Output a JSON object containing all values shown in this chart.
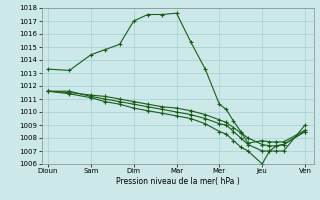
{
  "title": "",
  "xlabel": "Pression niveau de la mer( hPa )",
  "xtick_labels": [
    "Dioun",
    "Sam",
    "Dim",
    "Mar",
    "Mer",
    "Jeu",
    "Ven"
  ],
  "ytick_min": 1006,
  "ytick_max": 1018,
  "ytick_step": 1,
  "background_color": "#cce8e8",
  "grid_color": "#99cccc",
  "line_color": "#1a5c1a",
  "line_width": 0.8,
  "marker": "+",
  "marker_size": 3,
  "marker_edge_width": 0.8,
  "lines": [
    [
      1013.3,
      1013.2,
      1014.4,
      1014.8,
      1015.2,
      1017.0,
      1017.5,
      1017.5,
      1017.6,
      1015.4,
      1013.3,
      1010.6,
      1010.2,
      1009.3,
      1008.5,
      1007.6,
      1007.8,
      1007.7,
      1007.7,
      1007.7,
      1008.6
    ],
    [
      1011.6,
      1011.6,
      1011.2,
      1011.0,
      1010.8,
      1010.6,
      1010.4,
      1010.2,
      1010.0,
      1009.8,
      1009.5,
      1009.1,
      1009.0,
      1008.5,
      1008.0,
      1007.5,
      1007.0,
      1007.0,
      1007.0,
      1007.0,
      1009.0
    ],
    [
      1011.6,
      1011.5,
      1011.3,
      1011.2,
      1011.0,
      1010.8,
      1010.6,
      1010.4,
      1010.3,
      1010.1,
      1009.8,
      1009.4,
      1009.2,
      1008.8,
      1008.4,
      1008.0,
      1007.5,
      1007.4,
      1007.4,
      1007.5,
      1008.5
    ],
    [
      1011.6,
      1011.4,
      1011.1,
      1010.8,
      1010.6,
      1010.3,
      1010.1,
      1009.9,
      1009.7,
      1009.5,
      1009.1,
      1008.5,
      1008.3,
      1007.8,
      1007.3,
      1007.0,
      1006.0,
      1007.0,
      1007.4,
      1007.5,
      1008.5
    ]
  ],
  "x_positions": [
    0,
    0.5,
    1,
    1.33,
    1.67,
    2,
    2.33,
    2.67,
    3,
    3.33,
    3.67,
    4,
    4.16,
    4.33,
    4.5,
    4.67,
    5,
    5.17,
    5.33,
    5.5,
    6
  ],
  "xtick_positions": [
    0,
    1,
    2,
    3,
    4,
    5,
    6
  ],
  "xlim": [
    -0.15,
    6.2
  ]
}
